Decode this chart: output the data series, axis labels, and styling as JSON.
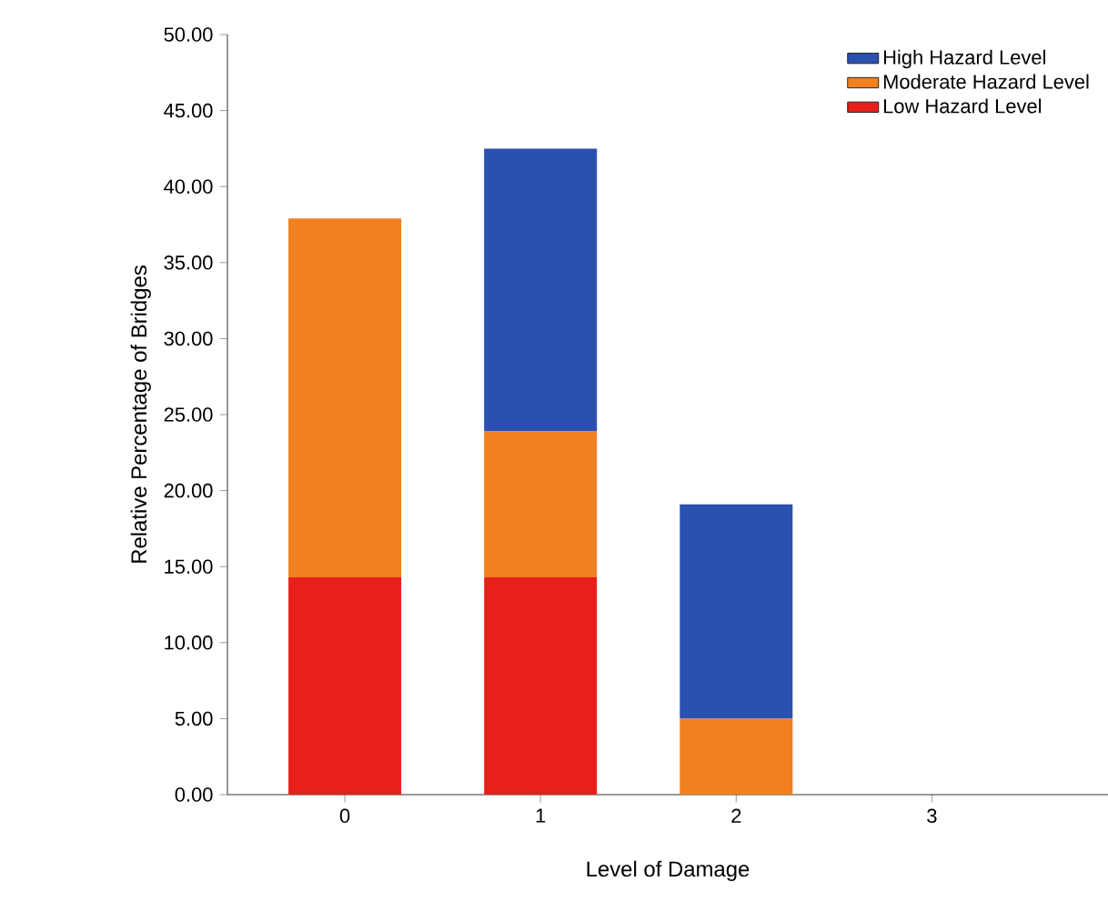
{
  "chart_data": {
    "type": "bar",
    "stacked": true,
    "xlabel": "Level of Damage",
    "ylabel": "Relative Percentage of Bridges",
    "categories": [
      "0",
      "1",
      "2",
      "3"
    ],
    "series": [
      {
        "name": "Low Hazard Level",
        "color": "#e8201c",
        "values": [
          14.3,
          14.3,
          0,
          0
        ]
      },
      {
        "name": "Moderate Hazard Level",
        "color": "#f08020",
        "values": [
          23.6,
          9.6,
          5.0,
          0
        ]
      },
      {
        "name": "High Hazard Level",
        "color": "#2a50b0",
        "values": [
          0,
          18.6,
          14.1,
          0
        ]
      }
    ],
    "ylim": [
      0,
      50
    ],
    "yticks": [
      {
        "value": 0,
        "label": "0.00"
      },
      {
        "value": 5,
        "label": "5.00"
      },
      {
        "value": 10,
        "label": "10.00"
      },
      {
        "value": 15,
        "label": "15.00"
      },
      {
        "value": 20,
        "label": "20.00"
      },
      {
        "value": 25,
        "label": "25.00"
      },
      {
        "value": 30,
        "label": "30.00"
      },
      {
        "value": 35,
        "label": "35.00"
      },
      {
        "value": 40,
        "label": "40.00"
      },
      {
        "value": 45,
        "label": "45.00"
      },
      {
        "value": 50,
        "label": "50.00"
      }
    ],
    "grid": false,
    "legend": "top right"
  }
}
